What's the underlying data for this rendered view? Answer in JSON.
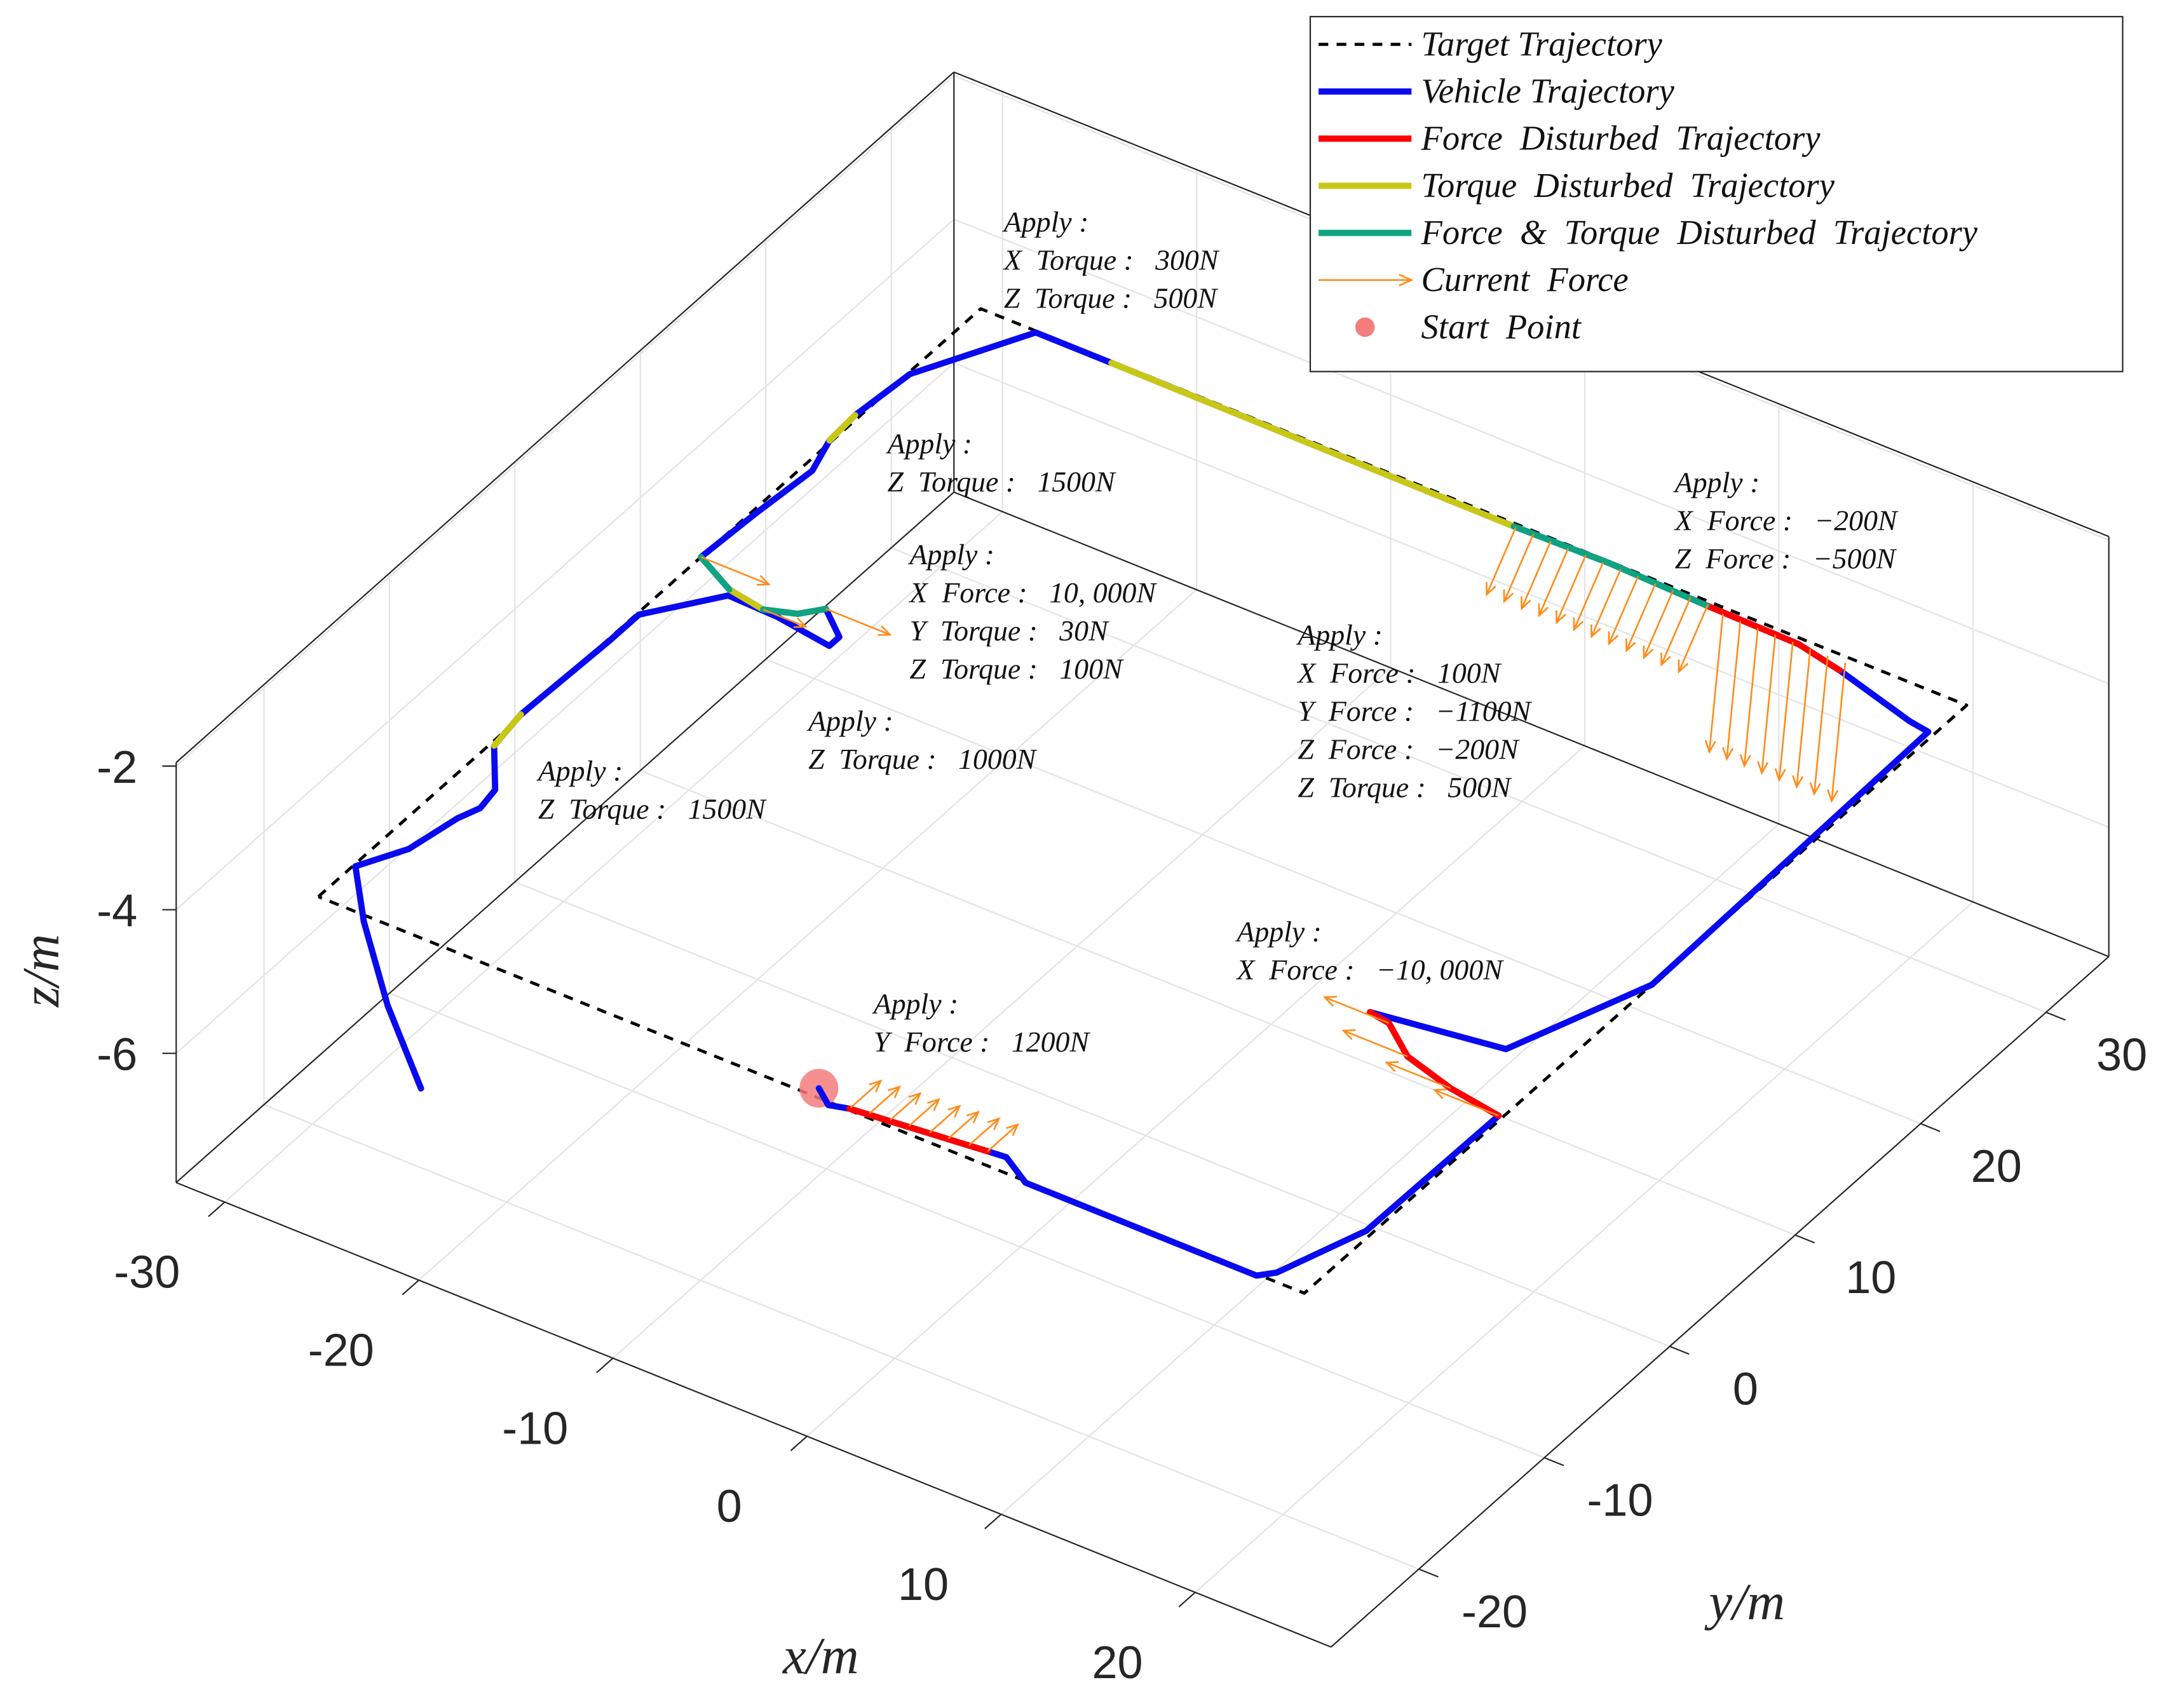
{
  "chart_data": {
    "type": "line3d",
    "xlabel": "x/m",
    "ylabel": "y/m",
    "zlabel": "z/m",
    "xlim": [
      -32.5,
      27
    ],
    "ylim": [
      -27,
      35
    ],
    "zlim": [
      -7.8,
      -1.95
    ],
    "xticks": [
      -30,
      -20,
      -10,
      0,
      10,
      20
    ],
    "yticks": [
      -20,
      -10,
      0,
      10,
      20,
      30
    ],
    "zticks": [
      -2,
      -4,
      -6
    ],
    "grid": true,
    "legend": "upper right",
    "series": [
      {
        "name": "Target Trajectory",
        "color": "#000000",
        "mark": "line",
        "line_style": "dashed",
        "x": [
          -29.7,
          -29.7,
          21.1,
          21.1,
          -29.7
        ],
        "y": [
          -20,
          32.8,
          32.8,
          -20,
          -20
        ],
        "z": [
          -4.6,
          -4.6,
          -4.6,
          -4.6,
          -4.6
        ]
      },
      {
        "name": "Vehicle Trajectory",
        "color": "#0a0af0",
        "mark": "line",
        "line_style": "solid",
        "x": [
          -4.3,
          -3.3,
          -2.4,
          4.2,
          5.1,
          6.8,
          18.7,
          19.3,
          20.8,
          20.9,
          18.1,
          15.3,
          13.3,
          12.2,
          18.5,
          21.1,
          20.8,
          19.7,
          15.2,
          12.7,
          7.9,
          2.8,
          -2.1,
          -22.9,
          -26.8,
          -29.6,
          -29.9,
          -29.8,
          -29.2,
          -29.5,
          -29.7,
          -27.4,
          -25.4,
          -24.0,
          -23.2,
          -21.6,
          -21.6,
          -24.6,
          -27.2,
          -29.6,
          -29.6,
          -29.8,
          -29.5,
          -27.7,
          -27.5,
          -27.9,
          -28.4,
          -29.6,
          -27.1,
          -22.9,
          -18.4
        ],
        "y": [
          -19.4,
          -20.2,
          -19.9,
          -19.1,
          -19.0,
          -20.1,
          -20.1,
          -19.4,
          -14.6,
          -4.2,
          -3.7,
          -2.8,
          -1.2,
          -1.0,
          0.1,
          7.7,
          30.2,
          30.4,
          31.8,
          32.4,
          32.5,
          32.7,
          32.6,
          32.7,
          32.7,
          27.0,
          23.1,
          20.9,
          18.6,
          14.6,
          10.5,
          9.2,
          8.8,
          9.4,
          10.4,
          9.0,
          8.2,
          8.7,
          8.8,
          5.4,
          3.1,
          -3.7,
          -6.3,
          -9.0,
          -10.5,
          -11.7,
          -14.8,
          -17.2,
          -20.4,
          -25.0,
          -29.3
        ],
        "z": [
          -4.6,
          -4.6,
          -4.6,
          -4.6,
          -4.6,
          -4.6,
          -4.6,
          -4.6,
          -4.6,
          -4.6,
          -4.6,
          -4.6,
          -4.6,
          -4.6,
          -4.6,
          -4.6,
          -4.6,
          -4.6,
          -4.6,
          -4.6,
          -4.6,
          -4.6,
          -4.6,
          -4.6,
          -4.6,
          -4.6,
          -4.6,
          -4.6,
          -4.6,
          -4.6,
          -4.6,
          -4.6,
          -4.6,
          -4.6,
          -4.6,
          -4.6,
          -4.6,
          -4.6,
          -4.6,
          -4.6,
          -4.6,
          -4.6,
          -4.6,
          -4.6,
          -4.6,
          -4.6,
          -4.6,
          -4.6,
          -4.6,
          -4.6,
          -4.6
        ]
      },
      {
        "name": "Force  Disturbed  Trajectory",
        "color": "#ff0000",
        "mark": "line",
        "line_style": "solid",
        "x": [
          -2.4,
          4.2,
          null,
          20.9,
          18.1,
          15.3,
          13.3,
          12.2,
          null,
          15.2,
          12.7,
          7.9
        ],
        "y": [
          -19.9,
          -19.1,
          null,
          -4.2,
          -3.7,
          -2.8,
          -1.2,
          -1.0,
          null,
          31.8,
          32.4,
          32.5
        ],
        "z": [
          -4.6,
          -4.6,
          null,
          -4.6,
          -4.6,
          -4.6,
          -4.6,
          -4.6,
          null,
          -4.6,
          -4.6,
          -4.6
        ]
      },
      {
        "name": "Torque  Disturbed  Trajectory",
        "color": "#c8c814",
        "mark": "line",
        "line_style": "solid",
        "x": [
          -2.1,
          -22.9,
          null,
          -29.9,
          -29.8,
          null,
          -27.4,
          -25.4,
          null,
          -29.8,
          -29.5
        ],
        "y": [
          32.6,
          32.7,
          null,
          23.1,
          20.9,
          null,
          9.2,
          8.8,
          null,
          -3.7,
          -6.3
        ],
        "z": [
          -4.6,
          -4.6,
          null,
          -4.6,
          -4.6,
          null,
          -4.6,
          -4.6,
          null,
          -4.6,
          -4.6
        ]
      },
      {
        "name": "Force  &  Torque  Disturbed  Trajectory",
        "color": "#10a37f",
        "mark": "line",
        "line_style": "solid",
        "x": [
          7.9,
          2.8,
          -2.1,
          null,
          -29.7,
          -27.4,
          null,
          -25.4,
          -24.0,
          -23.2
        ],
        "y": [
          32.5,
          32.7,
          32.6,
          null,
          10.5,
          9.2,
          null,
          8.8,
          9.4,
          10.4
        ],
        "z": [
          -4.6,
          -4.6,
          -4.6,
          null,
          -4.6,
          -4.6,
          null,
          -4.6,
          -4.6,
          -4.6
        ]
      },
      {
        "name": "Current  Force",
        "color": "#ff8c1a",
        "mark": "quiver",
        "x": [
          -2.4,
          -1.5,
          -0.5,
          0.4,
          1.4,
          2.3,
          3.3,
          4.2,
          20.9,
          18.1,
          15.3,
          13.3,
          -2,
          -1.1,
          -0.2,
          0.7,
          1.6,
          2.5,
          3.4,
          4.3,
          5.2,
          6.1,
          7.0,
          7.9,
          8.8,
          9.7,
          10.6,
          11.5,
          12.4,
          13.3,
          14.2,
          15.1,
          -29.7,
          -25.4,
          -23.2
        ],
        "y": [
          -19.8,
          -19.7,
          -19.6,
          -19.5,
          -19.4,
          -19.3,
          -19.2,
          -19.1,
          -4.2,
          -3.7,
          -2.8,
          -1.2,
          32.6,
          32.6,
          32.6,
          32.6,
          32.6,
          32.6,
          32.6,
          32.6,
          32.6,
          32.6,
          32.6,
          32.6,
          32.4,
          32.4,
          32.4,
          32.4,
          32.4,
          32.4,
          32.4,
          32.4,
          10.5,
          8.8,
          10.4
        ],
        "z": [
          -4.6,
          -4.6,
          -4.6,
          -4.6,
          -4.6,
          -4.6,
          -4.6,
          -4.6,
          -4.6,
          -4.6,
          -4.6,
          -4.6,
          -4.6,
          -4.6,
          -4.6,
          -4.6,
          -4.6,
          -4.6,
          -4.6,
          -4.6,
          -4.6,
          -4.6,
          -4.6,
          -4.6,
          -4.6,
          -4.6,
          -4.6,
          -4.6,
          -4.6,
          -4.6,
          -4.6,
          -4.6,
          -4.6,
          -4.6,
          -4.6
        ],
        "u": [
          0,
          0,
          0,
          0,
          0,
          0,
          0,
          0,
          -3.3,
          -3.3,
          -3.3,
          -3.3,
          -1.5,
          -1.5,
          -1.5,
          -1.5,
          -1.5,
          -1.5,
          -1.5,
          -1.5,
          -1.5,
          -1.5,
          -1.5,
          -1.5,
          -0.7,
          -0.7,
          -0.7,
          -0.7,
          -0.7,
          -0.7,
          -0.7,
          -0.7,
          3.5,
          2.2,
          3.3
        ],
        "v": [
          2.4,
          2.4,
          2.4,
          2.4,
          2.4,
          2.4,
          2.4,
          2.4,
          0,
          0,
          0,
          0,
          0,
          0,
          0,
          0,
          0,
          0,
          0,
          0,
          0,
          0,
          0,
          0,
          0,
          0,
          0,
          0,
          0,
          0,
          0,
          0,
          0,
          0,
          0
        ],
        "w": [
          0,
          0,
          0,
          0,
          0,
          0,
          0,
          0,
          0,
          0,
          0,
          0,
          -1.1,
          -1.1,
          -1.1,
          -1.1,
          -1.1,
          -1.1,
          -1.1,
          -1.1,
          -1.1,
          -1.1,
          -1.1,
          -1.1,
          -2.0,
          -2.0,
          -2.0,
          -2.0,
          -2.0,
          -2.0,
          -2.0,
          -2.0,
          0,
          0,
          0
        ]
      },
      {
        "name": "Start  Point",
        "color": "#f47c7c",
        "mark": "point",
        "x": [
          -4.3
        ],
        "y": [
          -19.4
        ],
        "z": [
          -4.6
        ]
      }
    ],
    "annotations": [
      [
        "Apply :",
        "X  Torque :   300N",
        "Z  Torque :   500N"
      ],
      [
        "Apply :",
        "Z  Torque :   1500N"
      ],
      [
        "Apply :",
        "X  Force :   10, 000N",
        "Y  Torque :   30N",
        "Z  Torque :   100N"
      ],
      [
        "Apply :",
        "Z  Torque :   1000N"
      ],
      [
        "Apply :",
        "Z  Torque :   1500N"
      ],
      [
        "Apply :",
        "X  Force :   100N",
        "Y  Force :   −1100N",
        "Z  Force :   −200N",
        "Z  Torque :   500N"
      ],
      [
        "Apply :",
        "X  Force :   −200N",
        "Z  Force :   −500N"
      ],
      [
        "Apply :",
        "X  Force :   −10, 000N"
      ],
      [
        "Apply :",
        "Y  Force :   1200N"
      ]
    ]
  }
}
